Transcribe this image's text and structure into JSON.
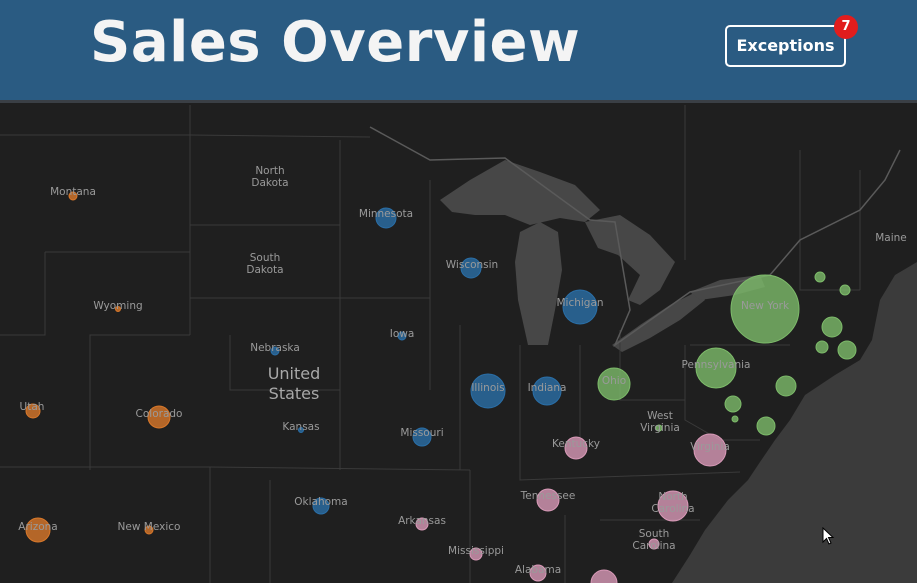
{
  "header": {
    "title": "Sales Overview",
    "button": {
      "label": "Exceptions",
      "badge": 7
    }
  },
  "map": {
    "country_label": "United States",
    "states": [
      {
        "label": "Montana",
        "color": "#d9782a"
      },
      {
        "label": "North Dakota"
      },
      {
        "label": "Minnesota",
        "color": "#2a6fa8"
      },
      {
        "label": "South Dakota"
      },
      {
        "label": "Wyoming",
        "color": "#d9782a"
      },
      {
        "label": "Wisconsin",
        "color": "#2a6fa8"
      },
      {
        "label": "Michigan",
        "color": "#2a6fa8"
      },
      {
        "label": "New York",
        "color": "#7dbb6a"
      },
      {
        "label": "Iowa",
        "color": "#2a6fa8"
      },
      {
        "label": "Nebraska",
        "color": "#2a6fa8"
      },
      {
        "label": "Pennsylvania",
        "color": "#7dbb6a"
      },
      {
        "label": "Ohio",
        "color": "#7dbb6a"
      },
      {
        "label": "Illinois",
        "color": "#2a6fa8"
      },
      {
        "label": "Indiana",
        "color": "#2a6fa8"
      },
      {
        "label": "Utah",
        "color": "#d9782a"
      },
      {
        "label": "Colorado",
        "color": "#d9782a"
      },
      {
        "label": "Kansas",
        "color": "#2a6fa8"
      },
      {
        "label": "Missouri",
        "color": "#2a6fa8"
      },
      {
        "label": "West Virginia",
        "color": "#7dbb6a"
      },
      {
        "label": "Virginia",
        "color": "#d99ab8"
      },
      {
        "label": "Kentucky",
        "color": "#d99ab8"
      },
      {
        "label": "Tennessee",
        "color": "#d99ab8"
      },
      {
        "label": "Oklahoma",
        "color": "#2a6fa8"
      },
      {
        "label": "Arkansas",
        "color": "#d99ab8"
      },
      {
        "label": "North Carolina",
        "color": "#d99ab8"
      },
      {
        "label": "South Carolina",
        "color": "#d99ab8"
      },
      {
        "label": "Arizona",
        "color": "#d9782a"
      },
      {
        "label": "New Mexico",
        "color": "#d9782a"
      },
      {
        "label": "Mississippi",
        "color": "#d99ab8"
      },
      {
        "label": "Alabama",
        "color": "#d99ab8"
      },
      {
        "label": "Maine"
      },
      {
        "label": null,
        "color": "#7dbb6a"
      },
      {
        "label": null,
        "color": "#7dbb6a"
      },
      {
        "label": null,
        "color": "#7dbb6a"
      },
      {
        "label": null,
        "color": "#7dbb6a"
      },
      {
        "label": null,
        "color": "#7dbb6a"
      },
      {
        "label": null,
        "color": "#7dbb6a"
      },
      {
        "label": null,
        "color": "#7dbb6a"
      },
      {
        "label": null,
        "color": "#7dbb6a"
      },
      {
        "label": null,
        "color": "#7dbb6a"
      },
      {
        "label": null,
        "color": "#d99ab8"
      }
    ]
  }
}
